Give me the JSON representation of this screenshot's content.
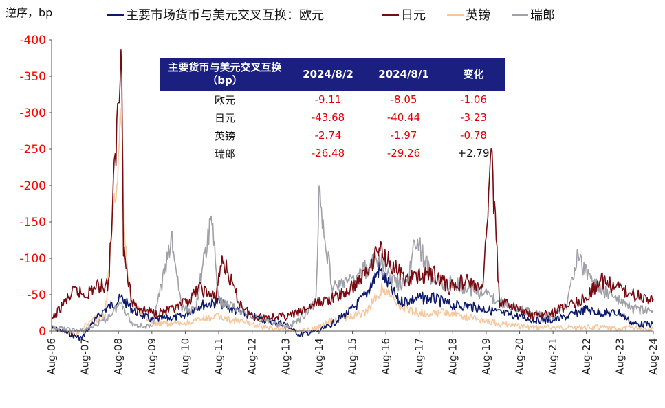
{
  "chart_data": {
    "type": "line",
    "ylabel": "逆序，bp",
    "y_axis_inverted": true,
    "ylim": [
      0,
      -400
    ],
    "yticks": [
      "-400",
      "-350",
      "-300",
      "-250",
      "-200",
      "-150",
      "-100",
      "-50",
      "0"
    ],
    "x_tick_labels": [
      "Aug-06",
      "Aug-07",
      "Aug-08",
      "Aug-09",
      "Aug-10",
      "Aug-11",
      "Aug-12",
      "Aug-13",
      "Aug-14",
      "Aug-15",
      "Aug-16",
      "Aug-17",
      "Aug-18",
      "Aug-19",
      "Aug-20",
      "Aug-21",
      "Aug-22",
      "Aug-23",
      "Aug-24"
    ],
    "legend_position": "top",
    "series": [
      {
        "name": "主要市场货币与美元交叉互换：欧元",
        "color": "#0d1a6b",
        "x": [
          2006.6,
          2007.5,
          2007.8,
          2008.2,
          2008.7,
          2009.0,
          2009.6,
          2010.5,
          2011.0,
          2011.6,
          2012.0,
          2012.6,
          2013.0,
          2013.6,
          2014.0,
          2014.6,
          2015.0,
          2015.6,
          2016.0,
          2016.4,
          2016.6,
          2017.0,
          2017.6,
          2018.0,
          2018.6,
          2019.0,
          2019.6,
          2020.0,
          2020.6,
          2021.0,
          2021.6,
          2022.0,
          2022.6,
          2023.0,
          2023.6,
          2024.0,
          2024.6
        ],
        "y": [
          -5,
          10,
          -10,
          -30,
          -45,
          -30,
          -15,
          -20,
          -35,
          -40,
          -30,
          -20,
          -15,
          -10,
          5,
          0,
          -10,
          -30,
          -50,
          -85,
          -70,
          -40,
          -45,
          -45,
          -35,
          -35,
          -30,
          -25,
          -20,
          -15,
          -15,
          -20,
          -30,
          -25,
          -25,
          -10,
          -9.11
        ]
      },
      {
        "name": "日元",
        "color": "#7a0a12",
        "x": [
          2006.6,
          2007.0,
          2007.3,
          2007.6,
          2007.9,
          2008.3,
          2008.7,
          2008.75,
          2008.85,
          2009.0,
          2009.3,
          2009.7,
          2010.3,
          2010.8,
          2011.0,
          2011.5,
          2011.7,
          2012.2,
          2012.6,
          2013.0,
          2013.6,
          2014.0,
          2014.6,
          2015.0,
          2015.5,
          2016.0,
          2016.4,
          2016.8,
          2017.2,
          2017.6,
          2018.0,
          2018.5,
          2019.0,
          2019.5,
          2019.75,
          2020.0,
          2020.6,
          2021.0,
          2021.6,
          2022.0,
          2022.6,
          2023.0,
          2023.5,
          2024.0,
          2024.6
        ],
        "y": [
          -15,
          -40,
          -55,
          -50,
          -60,
          -65,
          -400,
          -120,
          -80,
          -40,
          -30,
          -25,
          -30,
          -45,
          -60,
          -45,
          -100,
          -40,
          -20,
          -20,
          -20,
          -25,
          -40,
          -45,
          -55,
          -80,
          -115,
          -90,
          -70,
          -75,
          -80,
          -60,
          -70,
          -55,
          -248,
          -40,
          -30,
          -20,
          -25,
          -35,
          -45,
          -70,
          -60,
          -50,
          -43.68
        ]
      },
      {
        "name": "英镑",
        "color": "#f6c79d",
        "x": [
          2006.6,
          2007.3,
          2007.8,
          2008.2,
          2008.7,
          2008.8,
          2009.0,
          2009.6,
          2010.5,
          2011.0,
          2011.6,
          2012.0,
          2012.6,
          2013.0,
          2014.0,
          2014.6,
          2015.0,
          2016.0,
          2016.5,
          2017.0,
          2017.6,
          2018.0,
          2018.6,
          2019.0,
          2019.6,
          2020.0,
          2021.0,
          2022.0,
          2022.6,
          2023.0,
          2023.6,
          2024.0,
          2024.6
        ],
        "y": [
          -5,
          5,
          -15,
          -20,
          -300,
          -120,
          -40,
          -10,
          -10,
          -15,
          -20,
          -15,
          -10,
          -5,
          0,
          -5,
          -15,
          -25,
          -60,
          -35,
          -25,
          -25,
          -25,
          -20,
          -15,
          -10,
          -5,
          -5,
          -5,
          -5,
          -3,
          -5,
          -2.74
        ]
      },
      {
        "name": "瑞郎",
        "color": "#a0a0a8",
        "x": [
          2006.6,
          2007.5,
          2008.2,
          2008.7,
          2009.0,
          2009.6,
          2010.2,
          2010.5,
          2010.9,
          2011.4,
          2011.6,
          2012.0,
          2012.6,
          2013.0,
          2013.6,
          2014.0,
          2014.5,
          2014.6,
          2015.0,
          2015.6,
          2016.0,
          2016.4,
          2016.8,
          2017.2,
          2017.5,
          2018.0,
          2018.6,
          2019.0,
          2019.6,
          2020.0,
          2020.6,
          2021.0,
          2021.6,
          2022.0,
          2022.3,
          2022.6,
          2023.0,
          2023.6,
          2024.0,
          2024.6
        ],
        "y": [
          -5,
          0,
          -15,
          -40,
          -10,
          -5,
          -125,
          -30,
          -30,
          -158,
          -40,
          -35,
          -20,
          -15,
          -5,
          -15,
          -40,
          -185,
          -60,
          -70,
          -85,
          -100,
          -70,
          -60,
          -128,
          -70,
          -65,
          -60,
          -50,
          -40,
          -30,
          -25,
          -20,
          -35,
          -100,
          -80,
          -60,
          -40,
          -30,
          -26.48
        ]
      }
    ],
    "inset_table": {
      "headers": [
        "主要货币与美元交叉互换（bp）",
        "2024/8/2",
        "2024/8/1",
        "变化"
      ],
      "rows": [
        [
          "欧元",
          "-9.11",
          "-8.05",
          "-1.06"
        ],
        [
          "日元",
          "-43.68",
          "-40.44",
          "-3.23"
        ],
        [
          "英镑",
          "-2.74",
          "-1.97",
          "-0.78"
        ],
        [
          "瑞郎",
          "-26.48",
          "-29.26",
          "+2.79"
        ]
      ]
    }
  }
}
